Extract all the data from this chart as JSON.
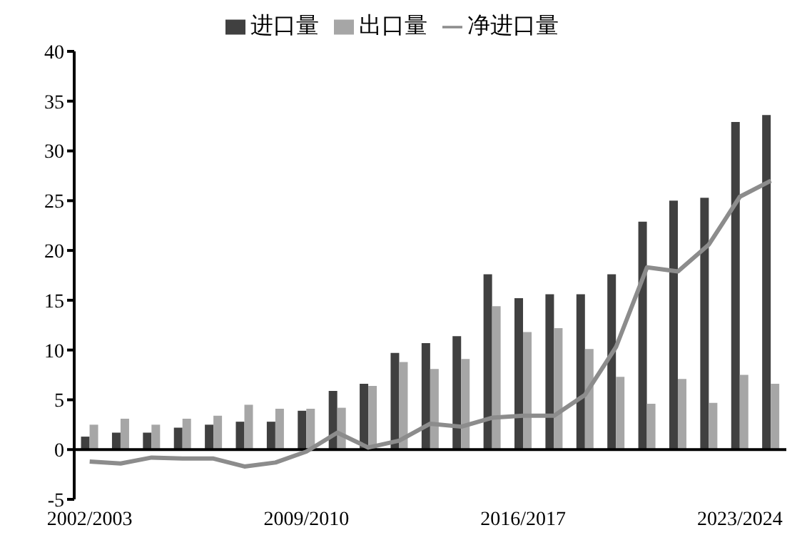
{
  "chart_data": {
    "type": "bar",
    "categories": [
      "2002/2003",
      null,
      null,
      null,
      null,
      null,
      null,
      "2009/2010",
      null,
      null,
      null,
      null,
      null,
      null,
      "2016/2017",
      null,
      null,
      null,
      null,
      null,
      null,
      "2023/2024",
      null
    ],
    "series": [
      {
        "name": "进口量",
        "color": "#404040",
        "values": [
          1.3,
          1.7,
          1.7,
          2.2,
          2.5,
          2.8,
          2.8,
          3.9,
          5.9,
          6.6,
          9.7,
          10.7,
          11.4,
          17.6,
          15.2,
          15.6,
          15.6,
          17.6,
          22.9,
          25.0,
          25.3,
          32.9,
          33.6
        ]
      },
      {
        "name": "出口量",
        "color": "#a6a6a6",
        "values": [
          2.5,
          3.1,
          2.5,
          3.1,
          3.4,
          4.5,
          4.1,
          4.1,
          4.2,
          6.4,
          8.8,
          8.1,
          9.1,
          14.4,
          11.8,
          12.2,
          10.1,
          7.3,
          4.6,
          7.1,
          4.7,
          7.5,
          6.6
        ]
      },
      {
        "name": "净进口量",
        "type": "line",
        "color": "#8c8c8c",
        "values": [
          -1.2,
          -1.4,
          -0.8,
          -0.9,
          -0.9,
          -1.7,
          -1.3,
          -0.2,
          1.7,
          0.2,
          0.9,
          2.6,
          2.3,
          3.2,
          3.4,
          3.4,
          5.5,
          10.3,
          18.3,
          17.9,
          20.6,
          25.4,
          27.0
        ]
      }
    ],
    "ylim": [
      -5,
      40
    ],
    "yticks": [
      -5,
      0,
      5,
      10,
      15,
      20,
      25,
      30,
      35,
      40
    ],
    "legend": "top",
    "marker": "none",
    "line_style": "solid"
  }
}
